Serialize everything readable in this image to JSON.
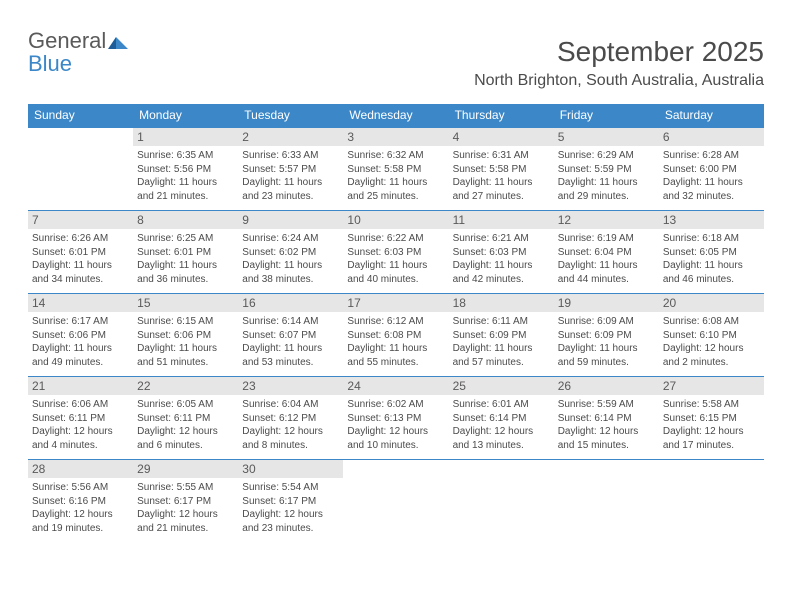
{
  "logo": {
    "word1": "General",
    "word2": "Blue"
  },
  "title": "September 2025",
  "subtitle": "North Brighton, South Australia, Australia",
  "colors": {
    "primary": "#3b87c8",
    "day_num_bg": "#e6e6e6",
    "text": "#4b4b4b",
    "logo_gray": "#5a5a5a"
  },
  "day_headers": [
    "Sunday",
    "Monday",
    "Tuesday",
    "Wednesday",
    "Thursday",
    "Friday",
    "Saturday"
  ],
  "weeks": [
    [
      {
        "num": "",
        "lines": []
      },
      {
        "num": "1",
        "lines": [
          "Sunrise: 6:35 AM",
          "Sunset: 5:56 PM",
          "Daylight: 11 hours and 21 minutes."
        ]
      },
      {
        "num": "2",
        "lines": [
          "Sunrise: 6:33 AM",
          "Sunset: 5:57 PM",
          "Daylight: 11 hours and 23 minutes."
        ]
      },
      {
        "num": "3",
        "lines": [
          "Sunrise: 6:32 AM",
          "Sunset: 5:58 PM",
          "Daylight: 11 hours and 25 minutes."
        ]
      },
      {
        "num": "4",
        "lines": [
          "Sunrise: 6:31 AM",
          "Sunset: 5:58 PM",
          "Daylight: 11 hours and 27 minutes."
        ]
      },
      {
        "num": "5",
        "lines": [
          "Sunrise: 6:29 AM",
          "Sunset: 5:59 PM",
          "Daylight: 11 hours and 29 minutes."
        ]
      },
      {
        "num": "6",
        "lines": [
          "Sunrise: 6:28 AM",
          "Sunset: 6:00 PM",
          "Daylight: 11 hours and 32 minutes."
        ]
      }
    ],
    [
      {
        "num": "7",
        "lines": [
          "Sunrise: 6:26 AM",
          "Sunset: 6:01 PM",
          "Daylight: 11 hours and 34 minutes."
        ]
      },
      {
        "num": "8",
        "lines": [
          "Sunrise: 6:25 AM",
          "Sunset: 6:01 PM",
          "Daylight: 11 hours and 36 minutes."
        ]
      },
      {
        "num": "9",
        "lines": [
          "Sunrise: 6:24 AM",
          "Sunset: 6:02 PM",
          "Daylight: 11 hours and 38 minutes."
        ]
      },
      {
        "num": "10",
        "lines": [
          "Sunrise: 6:22 AM",
          "Sunset: 6:03 PM",
          "Daylight: 11 hours and 40 minutes."
        ]
      },
      {
        "num": "11",
        "lines": [
          "Sunrise: 6:21 AM",
          "Sunset: 6:03 PM",
          "Daylight: 11 hours and 42 minutes."
        ]
      },
      {
        "num": "12",
        "lines": [
          "Sunrise: 6:19 AM",
          "Sunset: 6:04 PM",
          "Daylight: 11 hours and 44 minutes."
        ]
      },
      {
        "num": "13",
        "lines": [
          "Sunrise: 6:18 AM",
          "Sunset: 6:05 PM",
          "Daylight: 11 hours and 46 minutes."
        ]
      }
    ],
    [
      {
        "num": "14",
        "lines": [
          "Sunrise: 6:17 AM",
          "Sunset: 6:06 PM",
          "Daylight: 11 hours and 49 minutes."
        ]
      },
      {
        "num": "15",
        "lines": [
          "Sunrise: 6:15 AM",
          "Sunset: 6:06 PM",
          "Daylight: 11 hours and 51 minutes."
        ]
      },
      {
        "num": "16",
        "lines": [
          "Sunrise: 6:14 AM",
          "Sunset: 6:07 PM",
          "Daylight: 11 hours and 53 minutes."
        ]
      },
      {
        "num": "17",
        "lines": [
          "Sunrise: 6:12 AM",
          "Sunset: 6:08 PM",
          "Daylight: 11 hours and 55 minutes."
        ]
      },
      {
        "num": "18",
        "lines": [
          "Sunrise: 6:11 AM",
          "Sunset: 6:09 PM",
          "Daylight: 11 hours and 57 minutes."
        ]
      },
      {
        "num": "19",
        "lines": [
          "Sunrise: 6:09 AM",
          "Sunset: 6:09 PM",
          "Daylight: 11 hours and 59 minutes."
        ]
      },
      {
        "num": "20",
        "lines": [
          "Sunrise: 6:08 AM",
          "Sunset: 6:10 PM",
          "Daylight: 12 hours and 2 minutes."
        ]
      }
    ],
    [
      {
        "num": "21",
        "lines": [
          "Sunrise: 6:06 AM",
          "Sunset: 6:11 PM",
          "Daylight: 12 hours and 4 minutes."
        ]
      },
      {
        "num": "22",
        "lines": [
          "Sunrise: 6:05 AM",
          "Sunset: 6:11 PM",
          "Daylight: 12 hours and 6 minutes."
        ]
      },
      {
        "num": "23",
        "lines": [
          "Sunrise: 6:04 AM",
          "Sunset: 6:12 PM",
          "Daylight: 12 hours and 8 minutes."
        ]
      },
      {
        "num": "24",
        "lines": [
          "Sunrise: 6:02 AM",
          "Sunset: 6:13 PM",
          "Daylight: 12 hours and 10 minutes."
        ]
      },
      {
        "num": "25",
        "lines": [
          "Sunrise: 6:01 AM",
          "Sunset: 6:14 PM",
          "Daylight: 12 hours and 13 minutes."
        ]
      },
      {
        "num": "26",
        "lines": [
          "Sunrise: 5:59 AM",
          "Sunset: 6:14 PM",
          "Daylight: 12 hours and 15 minutes."
        ]
      },
      {
        "num": "27",
        "lines": [
          "Sunrise: 5:58 AM",
          "Sunset: 6:15 PM",
          "Daylight: 12 hours and 17 minutes."
        ]
      }
    ],
    [
      {
        "num": "28",
        "lines": [
          "Sunrise: 5:56 AM",
          "Sunset: 6:16 PM",
          "Daylight: 12 hours and 19 minutes."
        ]
      },
      {
        "num": "29",
        "lines": [
          "Sunrise: 5:55 AM",
          "Sunset: 6:17 PM",
          "Daylight: 12 hours and 21 minutes."
        ]
      },
      {
        "num": "30",
        "lines": [
          "Sunrise: 5:54 AM",
          "Sunset: 6:17 PM",
          "Daylight: 12 hours and 23 minutes."
        ]
      },
      {
        "num": "",
        "lines": []
      },
      {
        "num": "",
        "lines": []
      },
      {
        "num": "",
        "lines": []
      },
      {
        "num": "",
        "lines": []
      }
    ]
  ]
}
